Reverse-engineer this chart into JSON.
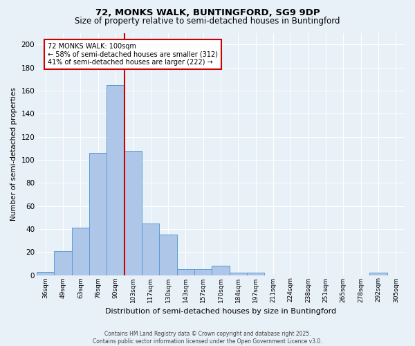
{
  "title_line1": "72, MONKS WALK, BUNTINGFORD, SG9 9DP",
  "title_line2": "Size of property relative to semi-detached houses in Buntingford",
  "xlabel": "Distribution of semi-detached houses by size in Buntingford",
  "ylabel": "Number of semi-detached properties",
  "categories": [
    "36sqm",
    "49sqm",
    "63sqm",
    "76sqm",
    "90sqm",
    "103sqm",
    "117sqm",
    "130sqm",
    "143sqm",
    "157sqm",
    "170sqm",
    "184sqm",
    "197sqm",
    "211sqm",
    "224sqm",
    "238sqm",
    "251sqm",
    "265sqm",
    "278sqm",
    "292sqm",
    "305sqm"
  ],
  "values": [
    3,
    21,
    41,
    106,
    165,
    108,
    45,
    35,
    5,
    5,
    8,
    2,
    2,
    0,
    0,
    0,
    0,
    0,
    0,
    2,
    0
  ],
  "bar_color": "#aec6e8",
  "bar_edge_color": "#5b9bd5",
  "vline_x_index": 5,
  "vline_color": "#cc0000",
  "annotation_title": "72 MONKS WALK: 100sqm",
  "annotation_line1": "← 58% of semi-detached houses are smaller (312)",
  "annotation_line2": "41% of semi-detached houses are larger (222) →",
  "annotation_box_color": "#cc0000",
  "ylim": [
    0,
    210
  ],
  "yticks": [
    0,
    20,
    40,
    60,
    80,
    100,
    120,
    140,
    160,
    180,
    200
  ],
  "footer": "Contains HM Land Registry data © Crown copyright and database right 2025.\nContains public sector information licensed under the Open Government Licence v3.0.",
  "background_color": "#e8f0f8",
  "plot_bg_color": "#e8f0f8",
  "grid_color": "#ffffff",
  "title_fontsize": 9.5,
  "subtitle_fontsize": 8.5,
  "bar_width": 1.0
}
